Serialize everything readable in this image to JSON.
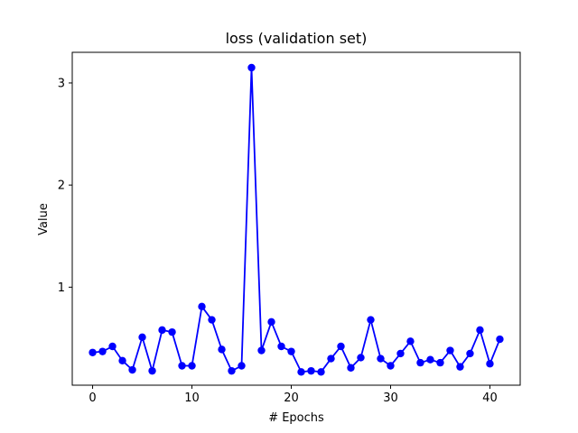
{
  "chart_data": {
    "type": "line",
    "title": "loss (validation set)",
    "xlabel": "# Epochs",
    "ylabel": "Value",
    "xlim": [
      -2.05,
      43.05
    ],
    "ylim": [
      0.04,
      3.3
    ],
    "xticks": [
      0,
      10,
      20,
      30,
      40
    ],
    "yticks": [
      1,
      2,
      3
    ],
    "grid": false,
    "color": "#0000ff",
    "series": [
      {
        "x": [
          0,
          1,
          2,
          3,
          4,
          5,
          6,
          7,
          8,
          9,
          10,
          11,
          12,
          13,
          14,
          15,
          16,
          17,
          18,
          19,
          20,
          21,
          22,
          23,
          24,
          25,
          26,
          27,
          28,
          29,
          30,
          31,
          32,
          33,
          34,
          35,
          36,
          37,
          38,
          39,
          40,
          41
        ],
        "values": [
          0.36,
          0.37,
          0.42,
          0.28,
          0.19,
          0.51,
          0.18,
          0.58,
          0.56,
          0.23,
          0.23,
          0.81,
          0.68,
          0.39,
          0.18,
          0.23,
          3.15,
          0.38,
          0.66,
          0.42,
          0.37,
          0.17,
          0.18,
          0.17,
          0.3,
          0.42,
          0.21,
          0.31,
          0.68,
          0.3,
          0.23,
          0.35,
          0.47,
          0.26,
          0.29,
          0.26,
          0.38,
          0.22,
          0.35,
          0.58,
          0.25,
          0.49
        ]
      }
    ]
  }
}
